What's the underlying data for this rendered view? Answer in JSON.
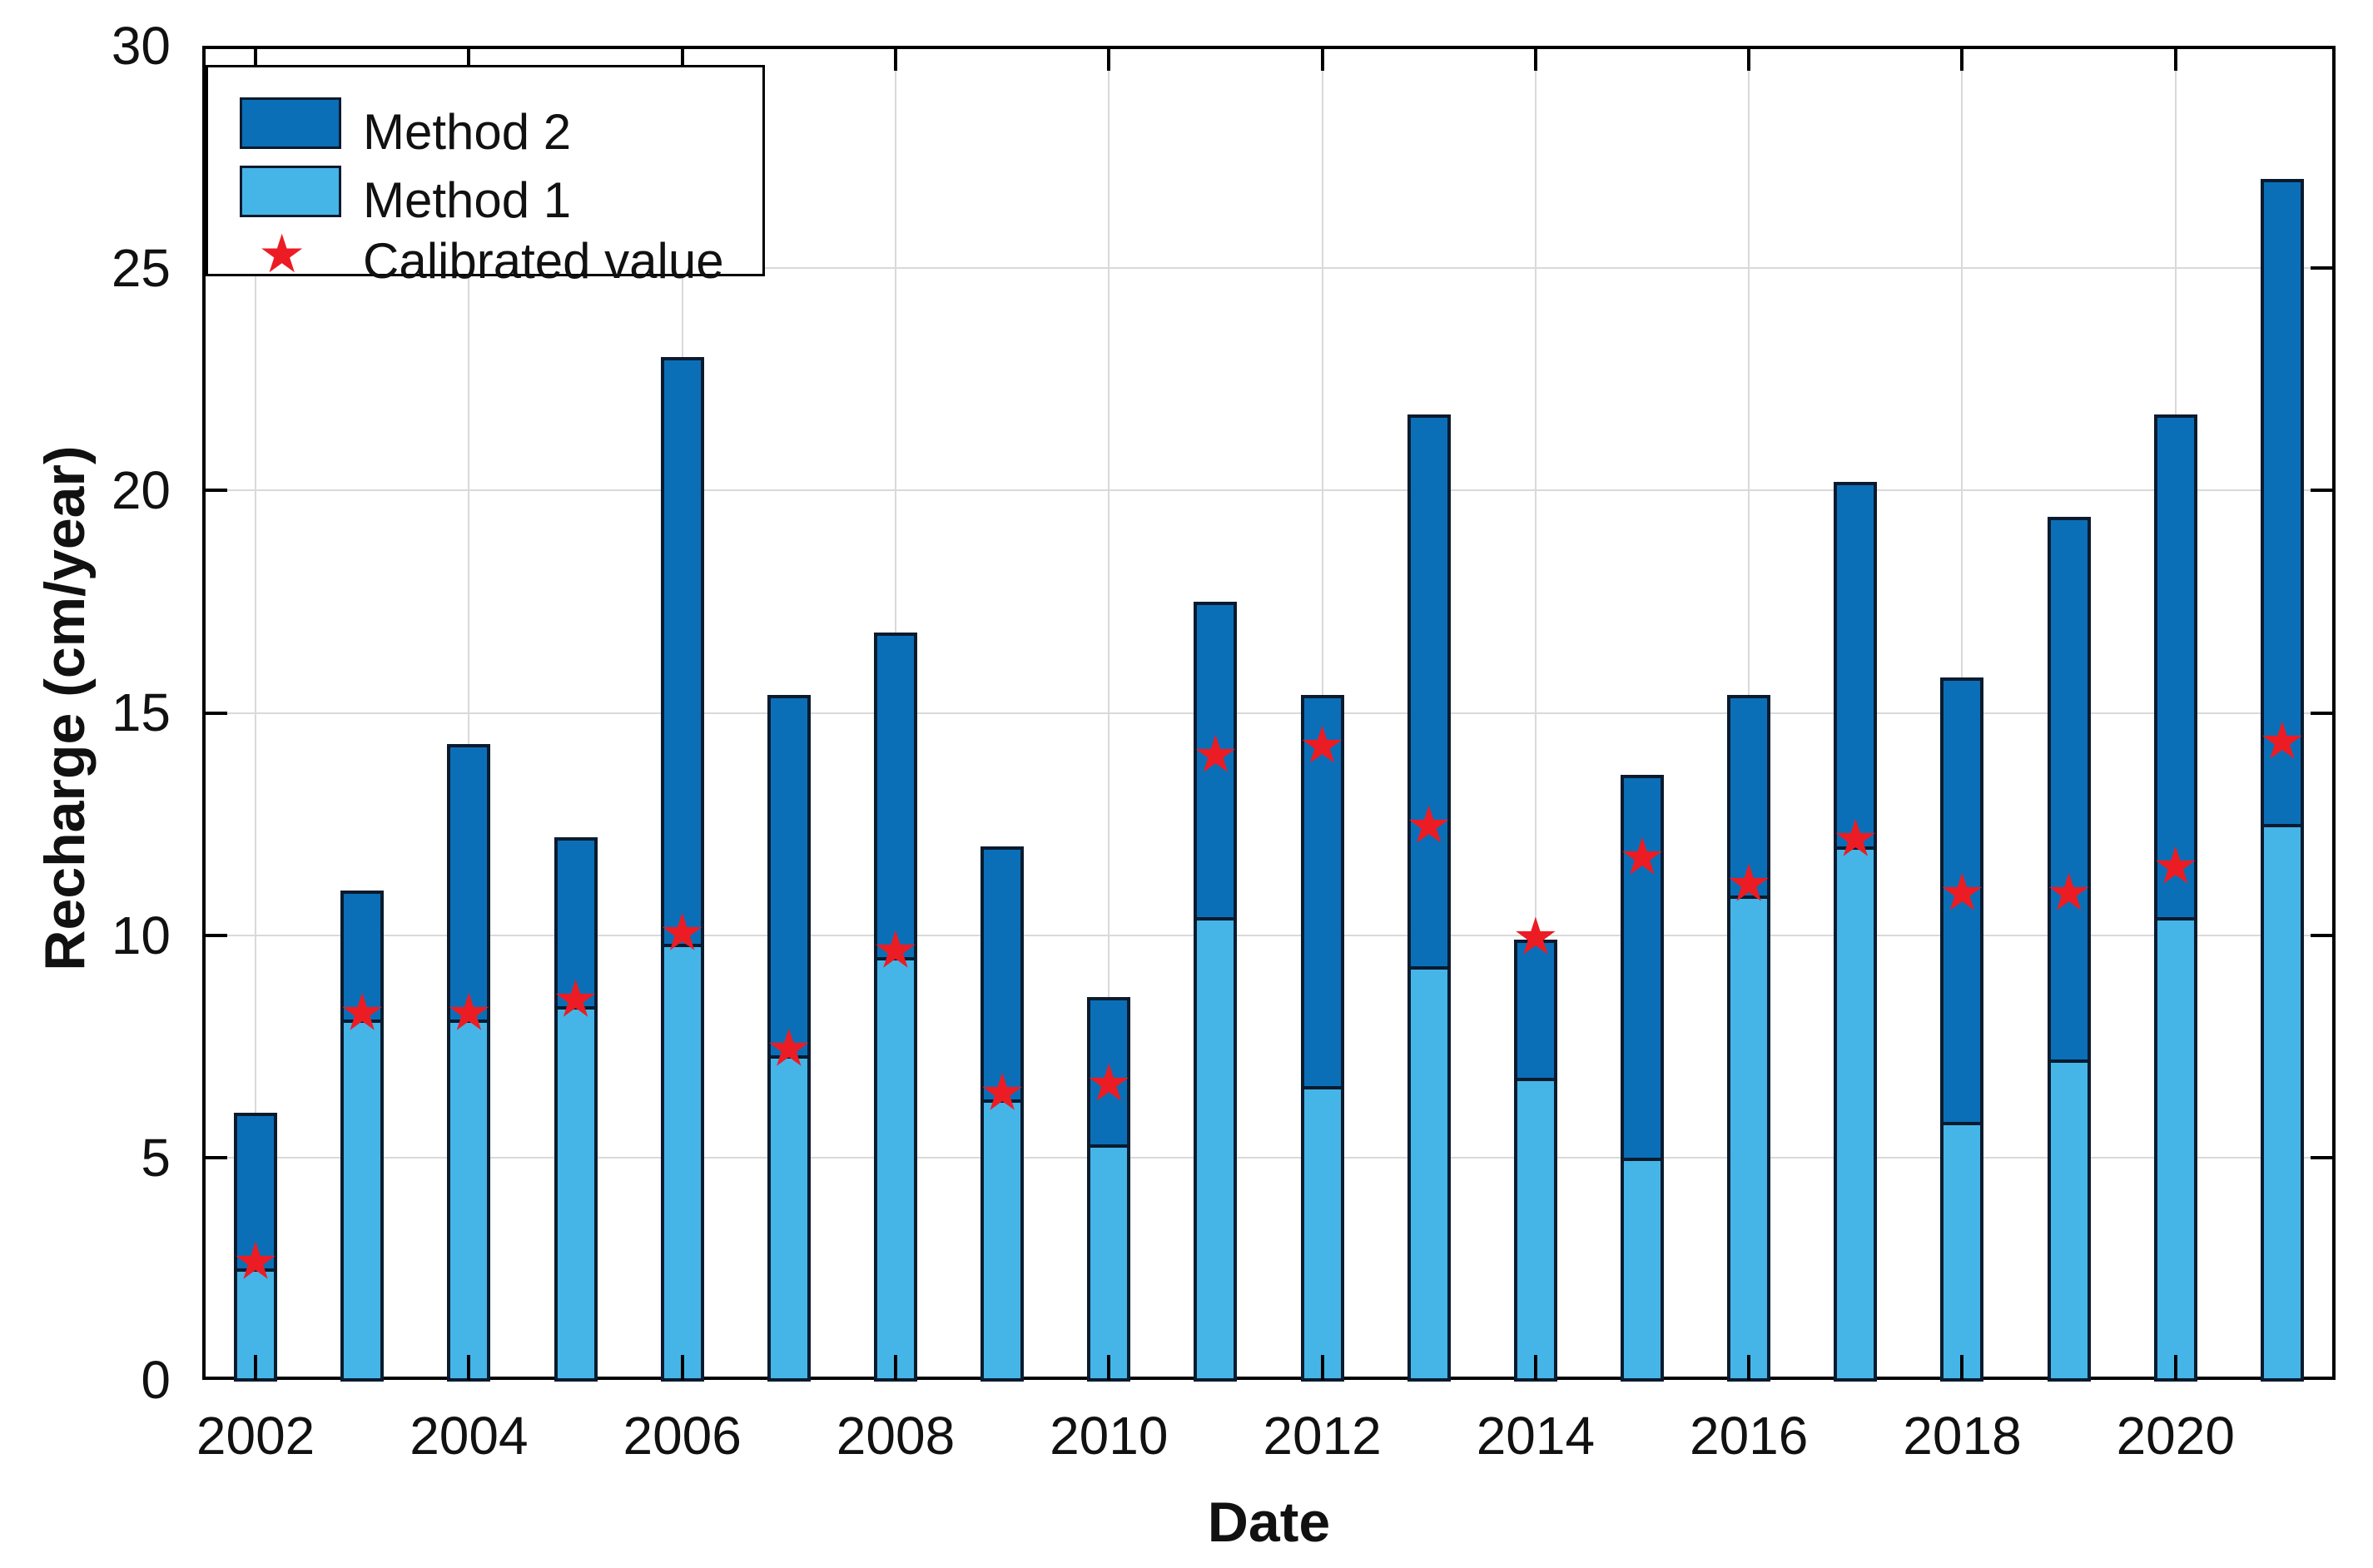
{
  "figure": {
    "title": "",
    "background": "#ffffff",
    "y_axis": {
      "label": "Recharge (cm/year)",
      "tick_labels": [
        "0",
        "5",
        "10",
        "15",
        "20",
        "25",
        "30"
      ],
      "min": 0,
      "max": 30
    },
    "x_axis": {
      "label": "Date",
      "tick_labels": [
        "2002",
        "2004",
        "2006",
        "2008",
        "2010",
        "2012",
        "2014",
        "2016",
        "2018",
        "2020"
      ]
    },
    "legend": {
      "items": [
        {
          "label": "Method 2",
          "swatch": "method2"
        },
        {
          "label": "Method 1",
          "swatch": "method1"
        },
        {
          "label": "Calibrated value",
          "swatch": "star"
        }
      ]
    },
    "colors": {
      "method2": "#0b6fb8",
      "method1": "#45b5e8",
      "marker": "#ec1c24",
      "edge": "#0a1b2e",
      "grid": "#d9d9d9",
      "axis": "#000000"
    },
    "marker_glyph": "★"
  },
  "chart_data": {
    "type": "bar",
    "stacked": true,
    "title": "",
    "xlabel": "Date",
    "ylabel": "Recharge (cm/year)",
    "ylim": [
      0,
      30
    ],
    "ytick_step": 5,
    "grid": true,
    "legend_position": "top-left",
    "categories": [
      2002,
      2003,
      2004,
      2005,
      2006,
      2007,
      2008,
      2009,
      2010,
      2011,
      2012,
      2013,
      2014,
      2015,
      2016,
      2017,
      2018,
      2019,
      2020,
      2021
    ],
    "labeled_ticks": [
      2002,
      2004,
      2006,
      2008,
      2010,
      2012,
      2014,
      2016,
      2018,
      2020
    ],
    "series": [
      {
        "name": "Method 1",
        "values": [
          2.5,
          8.1,
          8.1,
          8.4,
          9.8,
          7.3,
          9.5,
          6.3,
          5.3,
          10.4,
          6.6,
          9.3,
          6.8,
          5.0,
          10.9,
          12.0,
          5.8,
          7.2,
          10.4,
          12.5
        ]
      },
      {
        "name": "Method 2",
        "values": [
          3.5,
          2.9,
          6.2,
          3.8,
          13.2,
          8.1,
          7.3,
          5.7,
          3.3,
          7.1,
          8.8,
          12.4,
          3.1,
          8.6,
          4.5,
          8.2,
          10.0,
          12.2,
          11.3,
          14.5
        ]
      }
    ],
    "totals": [
      6.0,
      11.0,
      14.3,
      12.2,
      23.0,
      15.4,
      16.8,
      12.0,
      8.6,
      17.5,
      15.4,
      21.7,
      9.9,
      13.6,
      15.4,
      20.2,
      15.8,
      19.4,
      21.7,
      27.0
    ],
    "markers": {
      "name": "Calibrated value",
      "values": [
        2.6,
        8.2,
        8.2,
        8.5,
        10.0,
        7.4,
        9.6,
        6.4,
        6.6,
        14.0,
        14.2,
        12.4,
        9.9,
        11.7,
        11.1,
        12.1,
        10.9,
        10.9,
        11.5,
        14.3
      ]
    }
  }
}
